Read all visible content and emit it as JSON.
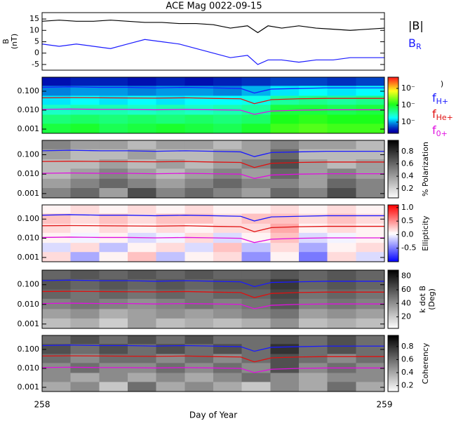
{
  "chart_data": [
    {
      "type": "line",
      "title": "ACE Mag 0022-09-15",
      "ylabel": "B",
      "ylabel_unit": "(nT)",
      "x": [
        258.0,
        258.05,
        258.1,
        258.15,
        258.2,
        258.25,
        258.3,
        258.35,
        258.4,
        258.45,
        258.5,
        258.55,
        258.6,
        258.63,
        258.66,
        258.7,
        258.75,
        258.8,
        258.85,
        258.9,
        259.0
      ],
      "xlim": [
        258,
        259
      ],
      "ylim": [
        -7.5,
        17.8
      ],
      "yticks": [
        -5,
        0,
        5,
        10,
        15
      ],
      "series": [
        {
          "name": "|B|",
          "color": "#000000",
          "values": [
            14,
            14.5,
            14,
            14,
            14.5,
            14,
            13.5,
            13.5,
            13,
            13,
            12.5,
            11,
            12,
            9,
            12,
            11,
            12,
            11,
            10.5,
            10,
            11
          ]
        },
        {
          "name": "B",
          "subscript": "R",
          "color": "#1a1aff",
          "values": [
            4,
            3,
            4,
            3,
            2,
            4,
            6,
            5,
            4,
            2,
            0,
            -2,
            -1,
            -5,
            -3,
            -3,
            -4,
            -3,
            -3,
            -2,
            -2
          ]
        }
      ]
    },
    {
      "type": "heatmap",
      "colormap": "rainbow",
      "colorbar_label": ")",
      "xlim": [
        258,
        259
      ],
      "ylim": [
        0.0006,
        0.55
      ],
      "log_y": true,
      "yticks": [
        0.001,
        {
          "value": 0.01,
          "label": "0.010"
        },
        {
          "value": 0.1,
          "label": "0.100"
        }
      ],
      "time_bins": [
        258.0,
        258.083,
        258.167,
        258.25,
        258.333,
        258.417,
        258.5,
        258.583,
        258.667,
        258.75,
        258.833,
        258.917,
        259.0
      ],
      "freq_bins": [
        0.0006,
        0.002,
        0.006,
        0.02,
        0.06,
        0.2,
        0.55
      ],
      "zlim": [
        -6,
        -1
      ],
      "zticks": [
        {
          "value": -2,
          "label": "10⁻"
        },
        {
          "value": -3.5,
          "label": "10⁻"
        },
        {
          "value": -5,
          "label": "10⁻"
        }
      ],
      "z": [
        [
          -3.6,
          -3.5,
          -3.7,
          -3.6,
          -3.5,
          -3.6,
          -3.7,
          -3.5,
          -3.2,
          -3.1,
          -3.2,
          -3.2
        ],
        [
          -3.9,
          -3.8,
          -3.9,
          -3.8,
          -3.9,
          -3.8,
          -3.9,
          -3.8,
          -3.4,
          -3.3,
          -3.4,
          -3.4
        ],
        [
          -4.3,
          -4.2,
          -4.2,
          -4.3,
          -4.2,
          -4.3,
          -4.2,
          -4.1,
          -3.6,
          -3.6,
          -3.7,
          -3.6
        ],
        [
          -4.7,
          -4.6,
          -4.7,
          -4.6,
          -4.7,
          -4.6,
          -4.6,
          -4.5,
          -4.1,
          -4.0,
          -4.1,
          -4.0
        ],
        [
          -5.1,
          -5.0,
          -5.0,
          -5.1,
          -5.0,
          -5.0,
          -5.1,
          -4.9,
          -4.7,
          -4.6,
          -4.7,
          -4.6
        ],
        [
          -5.7,
          -5.6,
          -5.6,
          -5.7,
          -5.6,
          -5.7,
          -5.6,
          -5.5,
          -5.4,
          -5.4,
          -5.5,
          -5.4
        ]
      ],
      "line_x": [
        258.0,
        258.08,
        258.17,
        258.25,
        258.33,
        258.42,
        258.5,
        258.58,
        258.62,
        258.67,
        258.75,
        258.83,
        258.92,
        259.0
      ],
      "series": [
        {
          "name": "f",
          "subscript": "H+",
          "color": "#1a1aff",
          "values": [
            0.16,
            0.17,
            0.16,
            0.16,
            0.15,
            0.16,
            0.15,
            0.14,
            0.08,
            0.13,
            0.14,
            0.15,
            0.15,
            0.15
          ]
        },
        {
          "name": "f",
          "subscript": "He+",
          "color": "#e01010",
          "values": [
            0.045,
            0.046,
            0.045,
            0.044,
            0.043,
            0.045,
            0.042,
            0.04,
            0.022,
            0.036,
            0.04,
            0.042,
            0.042,
            0.042
          ]
        },
        {
          "name": "f",
          "subscript": "0+",
          "color": "#e010e0",
          "values": [
            0.011,
            0.0115,
            0.011,
            0.011,
            0.0105,
            0.011,
            0.0105,
            0.01,
            0.006,
            0.009,
            0.01,
            0.0105,
            0.0105,
            0.0105
          ]
        }
      ]
    },
    {
      "type": "heatmap",
      "colormap": "gray_r",
      "colorbar_label": "% Polarization",
      "xlim": [
        258,
        259
      ],
      "ylim": [
        0.0006,
        0.55
      ],
      "log_y": true,
      "yticks": [
        0.001,
        {
          "value": 0.01,
          "label": "0.010"
        },
        {
          "value": 0.1,
          "label": "0.100"
        }
      ],
      "time_bins": [
        258.0,
        258.083,
        258.167,
        258.25,
        258.333,
        258.417,
        258.5,
        258.583,
        258.667,
        258.75,
        258.833,
        258.917,
        259.0
      ],
      "freq_bins": [
        0.0006,
        0.002,
        0.006,
        0.02,
        0.06,
        0.2,
        0.55
      ],
      "zlim": [
        0.05,
        0.98
      ],
      "zticks": [
        0.2,
        0.4,
        0.6,
        0.8
      ],
      "z": [
        [
          0.5,
          0.6,
          0.4,
          0.7,
          0.5,
          0.6,
          0.5,
          0.4,
          0.6,
          0.5,
          0.7,
          0.5
        ],
        [
          0.4,
          0.5,
          0.6,
          0.5,
          0.4,
          0.5,
          0.6,
          0.5,
          0.5,
          0.4,
          0.6,
          0.5
        ],
        [
          0.3,
          0.4,
          0.5,
          0.4,
          0.3,
          0.4,
          0.5,
          0.4,
          0.6,
          0.4,
          0.5,
          0.4
        ],
        [
          0.3,
          0.3,
          0.4,
          0.3,
          0.4,
          0.3,
          0.4,
          0.5,
          0.7,
          0.4,
          0.3,
          0.4
        ],
        [
          0.4,
          0.3,
          0.3,
          0.4,
          0.3,
          0.3,
          0.4,
          0.4,
          0.6,
          0.3,
          0.3,
          0.3
        ],
        [
          0.5,
          0.4,
          0.4,
          0.3,
          0.4,
          0.4,
          0.3,
          0.4,
          0.5,
          0.4,
          0.4,
          0.3
        ]
      ]
    },
    {
      "type": "heatmap",
      "colormap": "bwr",
      "colorbar_label": "Ellipticity",
      "xlim": [
        258,
        259
      ],
      "ylim": [
        0.0006,
        0.55
      ],
      "log_y": true,
      "yticks": [
        0.001,
        {
          "value": 0.01,
          "label": "0.010"
        },
        {
          "value": 0.1,
          "label": "0.100"
        }
      ],
      "time_bins": [
        258.0,
        258.083,
        258.167,
        258.25,
        258.333,
        258.417,
        258.5,
        258.583,
        258.667,
        258.75,
        258.833,
        258.917,
        259.0
      ],
      "freq_bins": [
        0.0006,
        0.002,
        0.006,
        0.02,
        0.06,
        0.2,
        0.55
      ],
      "zlim": [
        -1,
        1.1
      ],
      "zticks": [
        {
          "value": 1,
          "label": "1.0"
        },
        0.5,
        {
          "value": 0,
          "label": "0.0"
        },
        -0.5
      ],
      "z": [
        [
          0.2,
          -0.3,
          0.1,
          0.3,
          -0.2,
          0.1,
          0.2,
          -0.4,
          0.1,
          -0.5,
          0.2,
          -0.1
        ],
        [
          -0.1,
          0.2,
          -0.2,
          0.1,
          0.2,
          -0.1,
          0.3,
          -0.2,
          0.2,
          -0.3,
          0.1,
          0.2
        ],
        [
          0.1,
          0.0,
          0.1,
          -0.1,
          0.0,
          0.2,
          -0.1,
          0.1,
          0.3,
          -0.1,
          0.0,
          0.1
        ],
        [
          0.2,
          0.1,
          0.2,
          0.1,
          0.2,
          0.1,
          0.2,
          0.2,
          0.4,
          0.1,
          0.2,
          0.1
        ],
        [
          0.3,
          0.2,
          0.3,
          0.2,
          0.3,
          0.3,
          0.2,
          0.3,
          0.3,
          0.2,
          0.3,
          0.2
        ],
        [
          0.1,
          0.2,
          0.1,
          0.2,
          0.1,
          0.2,
          0.1,
          0.1,
          0.2,
          0.1,
          0.2,
          0.1
        ]
      ]
    },
    {
      "type": "heatmap",
      "colormap": "gray_r",
      "colorbar_label": [
        "k dot B",
        "(Deg)"
      ],
      "xlim": [
        258,
        259
      ],
      "ylim": [
        0.0006,
        0.55
      ],
      "log_y": true,
      "yticks": [
        0.001,
        {
          "value": 0.01,
          "label": "0.010"
        },
        {
          "value": 0.1,
          "label": "0.100"
        }
      ],
      "time_bins": [
        258.0,
        258.083,
        258.167,
        258.25,
        258.333,
        258.417,
        258.5,
        258.583,
        258.667,
        258.75,
        258.833,
        258.917,
        259.0
      ],
      "freq_bins": [
        0.0006,
        0.002,
        0.006,
        0.02,
        0.06,
        0.2,
        0.55
      ],
      "zlim": [
        3,
        89
      ],
      "zticks": [
        20,
        40,
        60,
        80
      ],
      "z": [
        [
          25,
          30,
          20,
          35,
          25,
          30,
          25,
          30,
          40,
          25,
          30,
          25
        ],
        [
          35,
          40,
          30,
          35,
          40,
          35,
          40,
          45,
          50,
          35,
          40,
          35
        ],
        [
          45,
          50,
          45,
          40,
          45,
          50,
          45,
          50,
          60,
          45,
          50,
          45
        ],
        [
          55,
          50,
          55,
          50,
          55,
          50,
          55,
          55,
          65,
          50,
          55,
          50
        ],
        [
          60,
          55,
          60,
          55,
          60,
          55,
          60,
          60,
          70,
          55,
          60,
          55
        ],
        [
          55,
          60,
          55,
          60,
          55,
          60,
          55,
          55,
          60,
          55,
          60,
          55
        ]
      ]
    },
    {
      "type": "heatmap",
      "colormap": "gray_r",
      "colorbar_label": "Coherency",
      "xlim": [
        258,
        259
      ],
      "ylim": [
        0.0006,
        0.55
      ],
      "log_y": true,
      "yticks": [
        0.001,
        {
          "value": 0.01,
          "label": "0.010"
        },
        {
          "value": 0.1,
          "label": "0.100"
        }
      ],
      "time_bins": [
        258.0,
        258.083,
        258.167,
        258.25,
        258.333,
        258.417,
        258.5,
        258.583,
        258.667,
        258.75,
        258.833,
        258.917,
        259.0
      ],
      "freq_bins": [
        0.0006,
        0.002,
        0.006,
        0.02,
        0.06,
        0.2,
        0.55
      ],
      "zlim": [
        0.11,
        0.97
      ],
      "zticks": [
        0.2,
        0.4,
        0.6,
        0.8
      ],
      "z": [
        [
          0.4,
          0.5,
          0.3,
          0.6,
          0.4,
          0.5,
          0.4,
          0.3,
          0.5,
          0.4,
          0.6,
          0.4
        ],
        [
          0.5,
          0.4,
          0.5,
          0.4,
          0.5,
          0.4,
          0.5,
          0.6,
          0.5,
          0.4,
          0.5,
          0.5
        ],
        [
          0.5,
          0.6,
          0.5,
          0.5,
          0.6,
          0.5,
          0.6,
          0.5,
          0.7,
          0.5,
          0.6,
          0.5
        ],
        [
          0.6,
          0.5,
          0.6,
          0.6,
          0.5,
          0.6,
          0.5,
          0.6,
          0.7,
          0.6,
          0.5,
          0.6
        ],
        [
          0.7,
          0.6,
          0.7,
          0.6,
          0.7,
          0.6,
          0.7,
          0.6,
          0.8,
          0.6,
          0.7,
          0.6
        ],
        [
          0.6,
          0.7,
          0.6,
          0.7,
          0.6,
          0.7,
          0.6,
          0.6,
          0.7,
          0.6,
          0.7,
          0.6
        ]
      ],
      "xticks": [
        258,
        259
      ],
      "xlabel": "Day of Year"
    }
  ]
}
